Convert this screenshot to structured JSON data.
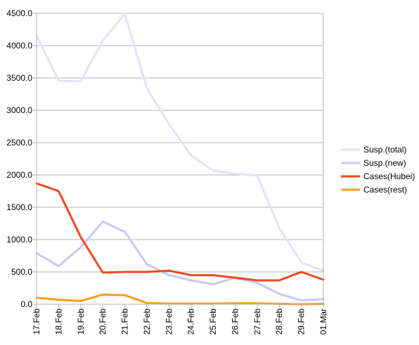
{
  "chart_data": {
    "type": "line",
    "title": "",
    "xlabel": "",
    "ylabel": "",
    "categories": [
      "17.Feb",
      "18.Feb",
      "19.Feb",
      "20.Feb",
      "21.Feb",
      "22.Feb",
      "23.Feb",
      "24.Feb",
      "25.Feb",
      "26.Feb",
      "27.Feb",
      "28.Feb",
      "29.Feb",
      "01.Mar"
    ],
    "ylim": [
      0,
      4500
    ],
    "yticks": [
      "0.0",
      "500.0",
      "1000.0",
      "1500.0",
      "2000.0",
      "2500.0",
      "3000.0",
      "3500.0",
      "4000.0",
      "4500.0"
    ],
    "grid": "horizontal",
    "legend_position": "right",
    "series": [
      {
        "name": "Susp.(total)",
        "color": "#e4e2f7",
        "values": [
          4150,
          3460,
          3450,
          4080,
          4490,
          3340,
          2790,
          2300,
          2070,
          2020,
          1990,
          1180,
          650,
          520
        ]
      },
      {
        "name": "Susp.(new)",
        "color": "#c9c9f1",
        "values": [
          790,
          590,
          880,
          1280,
          1120,
          620,
          450,
          370,
          310,
          410,
          330,
          160,
          60,
          80
        ]
      },
      {
        "name": "Cases(Hubei)",
        "color": "#ee4a1e",
        "values": [
          1870,
          1750,
          1040,
          490,
          500,
          500,
          520,
          450,
          450,
          410,
          370,
          370,
          500,
          380
        ]
      },
      {
        "name": "Cases(rest)",
        "color": "#ff9c1c",
        "values": [
          100,
          70,
          50,
          150,
          140,
          20,
          10,
          10,
          10,
          15,
          15,
          5,
          0,
          5
        ]
      }
    ]
  }
}
